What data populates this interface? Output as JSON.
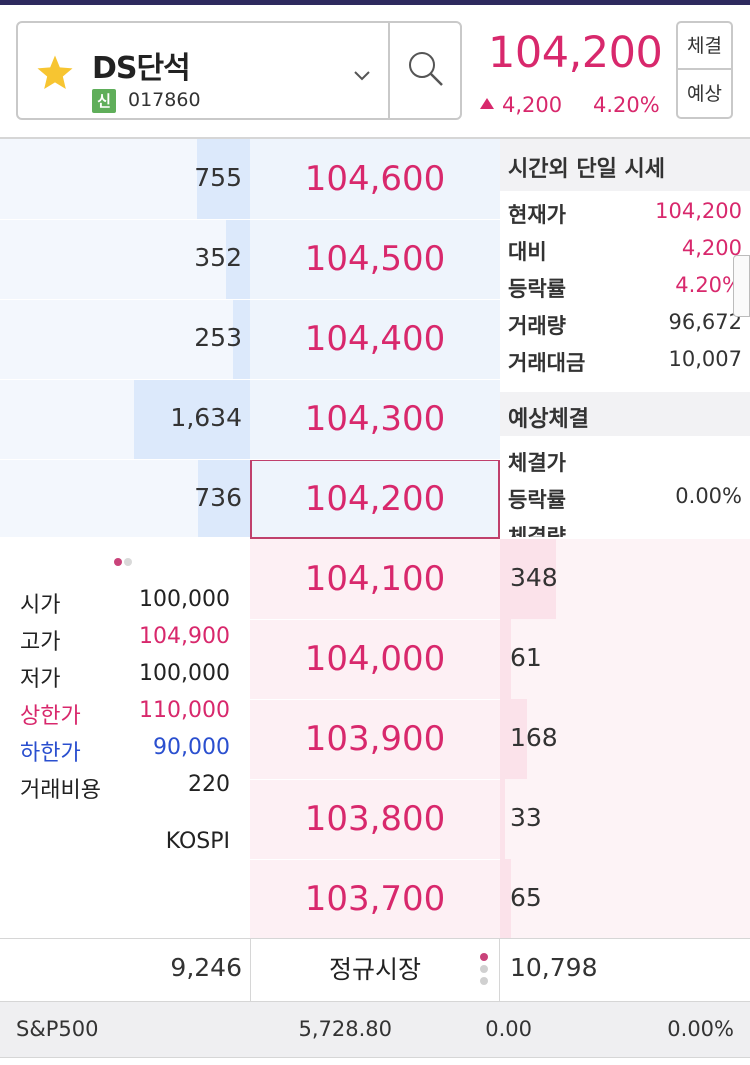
{
  "colors": {
    "up": "#d8286c",
    "down": "#2a4fcf",
    "header_bar": "#2e2a5e",
    "badge": "#5fae5a"
  },
  "header": {
    "stock_name": "DS단석",
    "badge": "신",
    "code": "017860",
    "current_price": "104,200",
    "change": "4,200",
    "change_pct": "4.20%",
    "tab_trade": "체결",
    "tab_expect": "예상",
    "icons": [
      "star-icon",
      "chevron-down-icon",
      "search-icon",
      "up-triangle-icon"
    ]
  },
  "orderbook": {
    "asks": [
      {
        "price": "104,600",
        "qty": "755",
        "fill": 0.46
      },
      {
        "price": "104,500",
        "qty": "352",
        "fill": 0.21
      },
      {
        "price": "104,400",
        "qty": "253",
        "fill": 0.15
      },
      {
        "price": "104,300",
        "qty": "1,634",
        "fill": 1.0
      },
      {
        "price": "104,200",
        "qty": "736",
        "fill": 0.45
      }
    ],
    "bids": [
      {
        "price": "104,100",
        "qty": "348",
        "fill": 0.21
      },
      {
        "price": "104,000",
        "qty": "61",
        "fill": 0.04
      },
      {
        "price": "103,900",
        "qty": "168",
        "fill": 0.1
      },
      {
        "price": "103,800",
        "qty": "33",
        "fill": 0.02
      },
      {
        "price": "103,700",
        "qty": "65",
        "fill": 0.04
      }
    ],
    "total_ask": "9,246",
    "total_bid": "10,798",
    "market_label": "정규시장"
  },
  "after_hours": {
    "title": "시간외 단일 시세",
    "rows": [
      {
        "label": "현재가",
        "value": "104,200"
      },
      {
        "label": "대비",
        "value": "4,200"
      },
      {
        "label": "등락률",
        "value": "4.20%"
      },
      {
        "label": "거래량",
        "value": "96,672"
      },
      {
        "label": "거래대금",
        "value": "10,007"
      }
    ],
    "expected_title": "예상체결",
    "expected_rows": [
      {
        "label": "체결가",
        "value": ""
      },
      {
        "label": "등락률",
        "value": "0.00%"
      },
      {
        "label": "체결량",
        "value": ""
      }
    ]
  },
  "stats": {
    "rows": [
      {
        "label": "시가",
        "value": "100,000"
      },
      {
        "label": "고가",
        "value": "104,900"
      },
      {
        "label": "저가",
        "value": "100,000"
      },
      {
        "label": "상한가",
        "value": "110,000"
      },
      {
        "label": "하한가",
        "value": "90,000"
      },
      {
        "label": "거래비용",
        "value": "220"
      }
    ],
    "market": "KOSPI"
  },
  "index": {
    "name": "S&P500",
    "value": "5,728.80",
    "change": "0.00",
    "change_pct": "0.00%"
  }
}
